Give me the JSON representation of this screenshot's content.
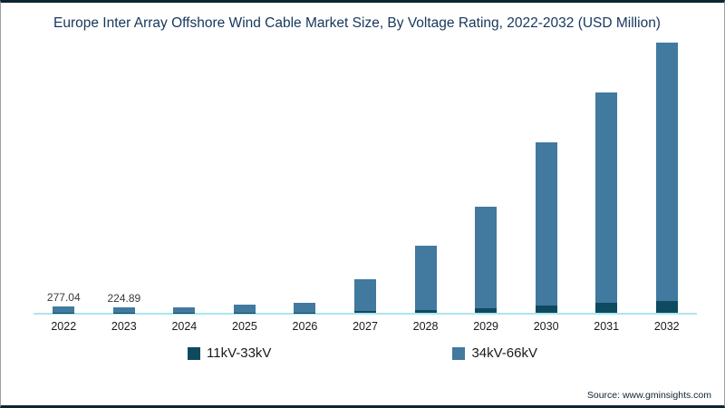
{
  "chart": {
    "title": "Europe Inter Array Offshore Wind Cable Market Size, By Voltage Rating, 2022-2032 (USD Million)",
    "source": "Source: www.gminsights.com",
    "colors": {
      "title_text": "#16365d",
      "axis_line": "#a9e6ee",
      "frame_border": "#0e2433"
    }
  },
  "chart_data": {
    "type": "bar",
    "stacked": true,
    "title": "Europe Inter Array Offshore Wind Cable Market Size, By Voltage Rating, 2022-2032 (USD Million)",
    "xlabel": "",
    "ylabel": "USD Million",
    "categories": [
      "2022",
      "2023",
      "2024",
      "2025",
      "2026",
      "2027",
      "2028",
      "2029",
      "2030",
      "2031",
      "2032"
    ],
    "series": [
      {
        "name": "11kV-33kV",
        "color": "#0e4a5f",
        "values": [
          12,
          10,
          11,
          16,
          20,
          70,
          130,
          210,
          330,
          420,
          500
        ]
      },
      {
        "name": "34kV-66kV",
        "color": "#41799f",
        "values": [
          265.04,
          214.89,
          230,
          339,
          420,
          1395,
          2800,
          4425,
          7115,
          9205,
          11300
        ]
      }
    ],
    "totals": [
      277.04,
      224.89,
      241,
      355,
      440,
      1465,
      2930,
      4635,
      7445,
      9625,
      11800
    ],
    "data_labels": [
      "277.04",
      "224.89",
      "",
      "",
      "",
      "",
      "",
      "",
      "",
      "",
      ""
    ],
    "ylim": [
      0,
      11800
    ],
    "grid": false,
    "legend_position": "bottom"
  }
}
